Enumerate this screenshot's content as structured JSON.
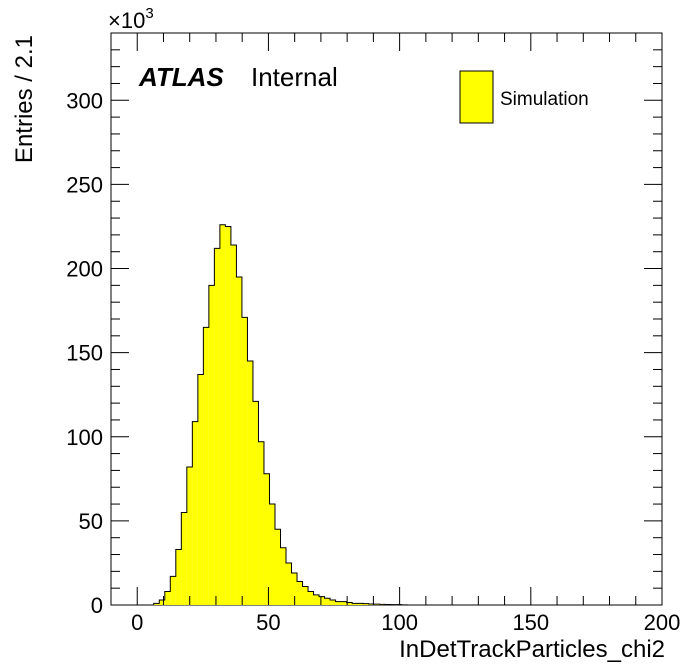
{
  "chart_data": {
    "type": "bar",
    "histogram": true,
    "title": "",
    "brand": {
      "experiment": "ATLAS",
      "status": "Internal"
    },
    "xlabel": "InDetTrackParticles_chi2",
    "ylabel": "Entries / 2.1",
    "y_multiplier_label": "×10",
    "y_multiplier_exponent": "3",
    "xlim": [
      -10,
      200
    ],
    "ylim": [
      0,
      340
    ],
    "bin_width": 2.1,
    "x_ticks": [
      0,
      50,
      100,
      150,
      200
    ],
    "x_tick_labels": [
      "0",
      "50",
      "100",
      "150",
      "200"
    ],
    "y_ticks": [
      0,
      50,
      100,
      150,
      200,
      250,
      300
    ],
    "y_tick_labels": [
      "0",
      "50",
      "100",
      "150",
      "200",
      "250",
      "300"
    ],
    "legend": {
      "label": "Simulation",
      "color": "#ffff00",
      "position": "top-right"
    },
    "fill_color": "#ffff00",
    "edge_color": "#000000",
    "series": [
      {
        "name": "Simulation",
        "bin_start": 6.3,
        "values": [
          1,
          3,
          8,
          17,
          33,
          55,
          82,
          109,
          137,
          165,
          190,
          212,
          226,
          225,
          214,
          195,
          171,
          145,
          121,
          97,
          78,
          60,
          45,
          34,
          25,
          19,
          14,
          11,
          8,
          6,
          5,
          4,
          3,
          2,
          2,
          1.5,
          1,
          1,
          0.8,
          0.6,
          0.5,
          0.4,
          0.3,
          0.2,
          0.2,
          0.1
        ]
      }
    ]
  }
}
